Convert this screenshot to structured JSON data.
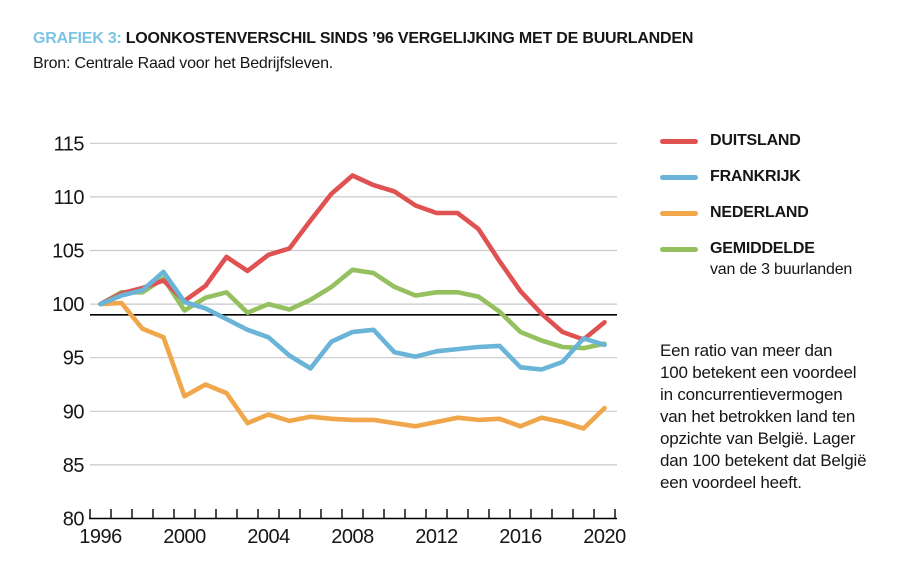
{
  "header": {
    "label": "GRAFIEK 3:",
    "title": "LOONKOSTENVERSCHIL SINDS ’96 VERGELIJKING MET DE BUURLANDEN",
    "source": "Bron: Centrale Raad voor het Bedrijfsleven."
  },
  "annotation": "Een ratio van meer dan\n100 betekent een voordeel\nin concurrentievermogen\nvan het betrokken land ten\nopzichte van België. Lager\ndan 100 betekent dat België\neen voordeel heeft.",
  "colors": {
    "red": "#e05252",
    "blue": "#6ab4d8",
    "orange": "#f0a64a",
    "green": "#94c05f",
    "title_accent": "#7cc4e3",
    "grid": "#c9c9c9",
    "axis": "#000000",
    "reference": "#000000",
    "text": "#161616"
  },
  "chart_data": {
    "type": "line",
    "title": "Loonkostenverschil sinds '96 vergelijking met de buurlanden",
    "x": [
      1996,
      1997,
      1998,
      1999,
      2000,
      2001,
      2002,
      2003,
      2004,
      2005,
      2006,
      2007,
      2008,
      2009,
      2010,
      2011,
      2012,
      2013,
      2014,
      2015,
      2016,
      2017,
      2018,
      2019,
      2020
    ],
    "series": [
      {
        "name": "DUITSLAND",
        "color": "#e05252",
        "values": [
          100,
          101.0,
          101.5,
          102.2,
          100.3,
          101.7,
          104.4,
          103.1,
          104.6,
          105.2,
          107.8,
          110.3,
          112.0,
          111.1,
          110.5,
          109.2,
          108.5,
          108.5,
          107.0,
          104.0,
          101.2,
          99.1,
          97.4,
          96.7,
          98.3
        ]
      },
      {
        "name": "FRANKRIJK",
        "color": "#6ab4d8",
        "values": [
          100,
          100.8,
          101.3,
          103.0,
          100.2,
          99.6,
          98.6,
          97.6,
          96.9,
          95.2,
          94.0,
          96.5,
          97.4,
          97.6,
          95.5,
          95.1,
          95.6,
          95.8,
          96.0,
          96.1,
          94.1,
          93.9,
          94.6,
          96.8,
          96.2
        ]
      },
      {
        "name": "NEDERLAND",
        "color": "#f0a64a",
        "values": [
          100,
          100.1,
          97.7,
          96.9,
          91.4,
          92.5,
          91.7,
          88.9,
          89.7,
          89.1,
          89.5,
          89.3,
          89.2,
          89.2,
          88.9,
          88.6,
          89.0,
          89.4,
          89.2,
          89.3,
          88.6,
          89.4,
          89.0,
          88.4,
          90.3
        ]
      },
      {
        "name": "GEMIDDELDE",
        "sub": "van de 3 buurlanden",
        "color": "#94c05f",
        "values": [
          100,
          101.1,
          101.1,
          102.4,
          99.4,
          100.6,
          101.1,
          99.2,
          100.0,
          99.5,
          100.4,
          101.6,
          103.2,
          102.9,
          101.6,
          100.8,
          101.1,
          101.1,
          100.7,
          99.3,
          97.4,
          96.6,
          96.0,
          95.9,
          96.3
        ]
      }
    ],
    "draw_order": [
      2,
      3,
      0,
      1
    ],
    "y_ticks": [
      115,
      110,
      105,
      100,
      95,
      90,
      85,
      80
    ],
    "x_tick_labels": [
      1996,
      2000,
      2004,
      2008,
      2012,
      2016,
      2020
    ],
    "ylim": [
      80,
      115
    ],
    "reference_line": 99,
    "grid": true,
    "legend_position": "right"
  }
}
